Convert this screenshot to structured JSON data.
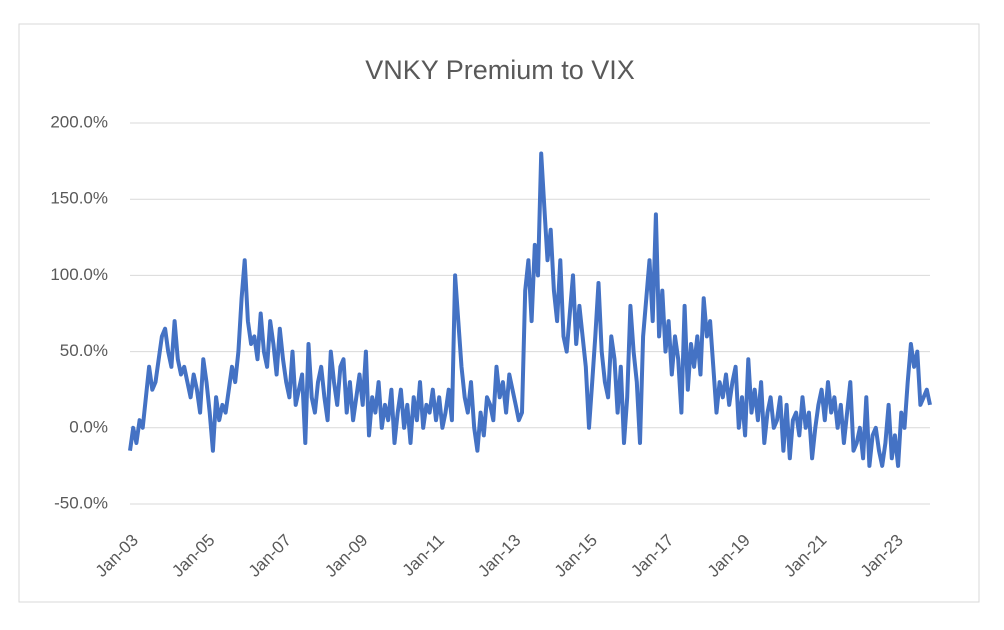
{
  "chart_data": {
    "type": "line",
    "title": "VNKY Premium to VIX",
    "categories": [
      "Jan-03",
      "Feb-03",
      "Mar-03",
      "Apr-03",
      "May-03",
      "Jun-03",
      "Jul-03",
      "Aug-03",
      "Sep-03",
      "Oct-03",
      "Nov-03",
      "Dec-03",
      "Jan-04",
      "Feb-04",
      "Mar-04",
      "Apr-04",
      "May-04",
      "Jun-04",
      "Jul-04",
      "Aug-04",
      "Sep-04",
      "Oct-04",
      "Nov-04",
      "Dec-04",
      "Jan-05",
      "Feb-05",
      "Mar-05",
      "Apr-05",
      "May-05",
      "Jun-05",
      "Jul-05",
      "Aug-05",
      "Sep-05",
      "Oct-05",
      "Nov-05",
      "Dec-05",
      "Jan-06",
      "Feb-06",
      "Mar-06",
      "Apr-06",
      "May-06",
      "Jun-06",
      "Jul-06",
      "Aug-06",
      "Sep-06",
      "Oct-06",
      "Nov-06",
      "Dec-06",
      "Jan-07",
      "Feb-07",
      "Mar-07",
      "Apr-07",
      "May-07",
      "Jun-07",
      "Jul-07",
      "Aug-07",
      "Sep-07",
      "Oct-07",
      "Nov-07",
      "Dec-07",
      "Jan-08",
      "Feb-08",
      "Mar-08",
      "Apr-08",
      "May-08",
      "Jun-08",
      "Jul-08",
      "Aug-08",
      "Sep-08",
      "Oct-08",
      "Nov-08",
      "Dec-08",
      "Jan-09",
      "Feb-09",
      "Mar-09",
      "Apr-09",
      "May-09",
      "Jun-09",
      "Jul-09",
      "Aug-09",
      "Sep-09",
      "Oct-09",
      "Nov-09",
      "Dec-09",
      "Jan-10",
      "Feb-10",
      "Mar-10",
      "Apr-10",
      "May-10",
      "Jun-10",
      "Jul-10",
      "Aug-10",
      "Sep-10",
      "Oct-10",
      "Nov-10",
      "Dec-10",
      "Jan-11",
      "Feb-11",
      "Mar-11",
      "Apr-11",
      "May-11",
      "Jun-11",
      "Jul-11",
      "Aug-11",
      "Sep-11",
      "Oct-11",
      "Nov-11",
      "Dec-11",
      "Jan-12",
      "Feb-12",
      "Mar-12",
      "Apr-12",
      "May-12",
      "Jun-12",
      "Jul-12",
      "Aug-12",
      "Sep-12",
      "Oct-12",
      "Nov-12",
      "Dec-12",
      "Jan-13",
      "Feb-13",
      "Mar-13",
      "Apr-13",
      "May-13",
      "Jun-13",
      "Jul-13",
      "Aug-13",
      "Sep-13",
      "Oct-13",
      "Nov-13",
      "Dec-13",
      "Jan-14",
      "Feb-14",
      "Mar-14",
      "Apr-14",
      "May-14",
      "Jun-14",
      "Jul-14",
      "Aug-14",
      "Sep-14",
      "Oct-14",
      "Nov-14",
      "Dec-14",
      "Jan-15",
      "Feb-15",
      "Mar-15",
      "Apr-15",
      "May-15",
      "Jun-15",
      "Jul-15",
      "Aug-15",
      "Sep-15",
      "Oct-15",
      "Nov-15",
      "Dec-15",
      "Jan-16",
      "Feb-16",
      "Mar-16",
      "Apr-16",
      "May-16",
      "Jun-16",
      "Jul-16",
      "Aug-16",
      "Sep-16",
      "Oct-16",
      "Nov-16",
      "Dec-16",
      "Jan-17",
      "Feb-17",
      "Mar-17",
      "Apr-17",
      "May-17",
      "Jun-17",
      "Jul-17",
      "Aug-17",
      "Sep-17",
      "Oct-17",
      "Nov-17",
      "Dec-17",
      "Jan-18",
      "Feb-18",
      "Mar-18",
      "Apr-18",
      "May-18",
      "Jun-18",
      "Jul-18",
      "Aug-18",
      "Sep-18",
      "Oct-18",
      "Nov-18",
      "Dec-18",
      "Jan-19",
      "Feb-19",
      "Mar-19",
      "Apr-19",
      "May-19",
      "Jun-19",
      "Jul-19",
      "Aug-19",
      "Sep-19",
      "Oct-19",
      "Nov-19",
      "Dec-19",
      "Jan-20",
      "Feb-20",
      "Mar-20",
      "Apr-20",
      "May-20",
      "Jun-20",
      "Jul-20",
      "Aug-20",
      "Sep-20",
      "Oct-20",
      "Nov-20",
      "Dec-20",
      "Jan-21",
      "Feb-21",
      "Mar-21",
      "Apr-21",
      "May-21",
      "Jun-21",
      "Jul-21",
      "Aug-21",
      "Sep-21",
      "Oct-21",
      "Nov-21",
      "Dec-21",
      "Jan-22",
      "Feb-22",
      "Mar-22",
      "Apr-22",
      "May-22",
      "Jun-22",
      "Jul-22",
      "Aug-22",
      "Sep-22",
      "Oct-22",
      "Nov-22",
      "Dec-22",
      "Jan-23",
      "Feb-23",
      "Mar-23",
      "Apr-23",
      "May-23",
      "Jun-23",
      "Jul-23",
      "Aug-23",
      "Sep-23",
      "Oct-23",
      "Nov-23",
      "Dec-23"
    ],
    "series": [
      {
        "color": "#4472c4",
        "values": [
          -15,
          0,
          -10,
          5,
          0,
          20,
          40,
          25,
          30,
          45,
          60,
          65,
          50,
          40,
          70,
          45,
          35,
          40,
          30,
          20,
          35,
          25,
          10,
          45,
          30,
          10,
          -15,
          20,
          5,
          15,
          10,
          25,
          40,
          30,
          50,
          85,
          110,
          70,
          55,
          60,
          45,
          75,
          50,
          40,
          70,
          55,
          35,
          65,
          45,
          30,
          20,
          50,
          15,
          25,
          35,
          -10,
          55,
          20,
          10,
          30,
          40,
          20,
          5,
          50,
          30,
          15,
          40,
          45,
          10,
          30,
          5,
          20,
          35,
          15,
          50,
          -5,
          20,
          10,
          30,
          0,
          15,
          5,
          25,
          -10,
          10,
          25,
          0,
          15,
          -10,
          20,
          5,
          30,
          0,
          15,
          10,
          25,
          5,
          20,
          0,
          10,
          25,
          5,
          100,
          70,
          40,
          20,
          10,
          30,
          0,
          -15,
          10,
          -5,
          20,
          15,
          5,
          40,
          20,
          30,
          10,
          35,
          25,
          15,
          5,
          10,
          90,
          110,
          70,
          120,
          100,
          180,
          145,
          110,
          130,
          90,
          70,
          110,
          60,
          50,
          75,
          100,
          55,
          80,
          60,
          40,
          0,
          30,
          60,
          95,
          50,
          30,
          20,
          60,
          45,
          10,
          40,
          -10,
          20,
          80,
          50,
          30,
          -10,
          60,
          85,
          110,
          70,
          140,
          60,
          90,
          50,
          70,
          35,
          60,
          45,
          10,
          80,
          25,
          55,
          40,
          60,
          35,
          85,
          60,
          70,
          40,
          10,
          30,
          20,
          35,
          15,
          30,
          40,
          0,
          20,
          -5,
          45,
          10,
          25,
          5,
          30,
          -10,
          10,
          20,
          0,
          5,
          20,
          -15,
          15,
          -20,
          5,
          10,
          -5,
          20,
          0,
          10,
          -20,
          0,
          15,
          25,
          5,
          30,
          10,
          20,
          0,
          15,
          -10,
          10,
          30,
          -15,
          -10,
          0,
          -20,
          20,
          -25,
          -5,
          0,
          -15,
          -25,
          -10,
          15,
          -20,
          -5,
          -25,
          10,
          0,
          30,
          55,
          40,
          50,
          15,
          20,
          25,
          15
        ]
      }
    ],
    "xticks": [
      "Jan-03",
      "Jan-05",
      "Jan-07",
      "Jan-09",
      "Jan-11",
      "Jan-13",
      "Jan-15",
      "Jan-17",
      "Jan-19",
      "Jan-21",
      "Jan-23"
    ],
    "ylim": [
      -50,
      200
    ],
    "yticks": [
      {
        "value": -50,
        "label": "-50.0%"
      },
      {
        "value": 0,
        "label": "0.0%"
      },
      {
        "value": 50,
        "label": "50.0%"
      },
      {
        "value": 100,
        "label": "100.0%"
      },
      {
        "value": 150,
        "label": "150.0%"
      },
      {
        "value": 200,
        "label": "200.0%"
      }
    ],
    "grid": true
  }
}
